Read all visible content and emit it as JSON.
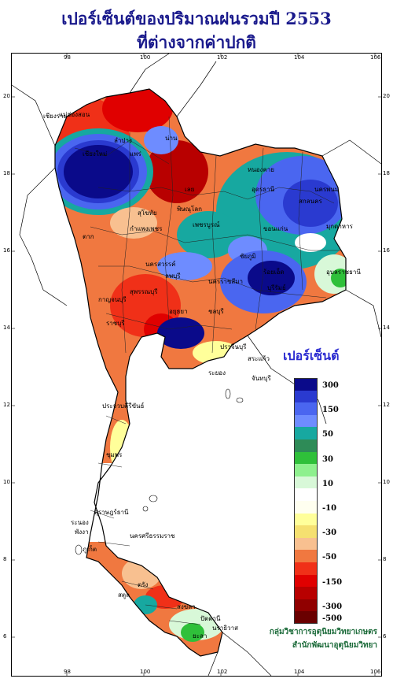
{
  "title": {
    "line1": "เปอร์เซ็นต์ของปริมาณฝนรวมปี  2553",
    "line2": "ที่ต่างจากค่าปกติ"
  },
  "axes": {
    "lon_ticks": [
      "98",
      "100",
      "102",
      "104",
      "106"
    ],
    "lat_ticks": [
      "20",
      "18",
      "16",
      "14",
      "12",
      "10",
      "8",
      "6"
    ]
  },
  "provinces": [
    "เชียงราย",
    "เชียงใหม่",
    "ลำปาง",
    "แพร่",
    "น่าน",
    "เลย",
    "หนองคาย",
    "อุดรธานี",
    "สกลนคร",
    "นครพนม",
    "มุกดาหาร",
    "ขอนแก่น",
    "เพชรบูรณ์",
    "พิษณุโลก",
    "ตาก",
    "กำแพงเพชร",
    "นครสวรรค์",
    "ลพบุรี",
    "นครราชสีมา",
    "บุรีรัมย์",
    "อุบลราชธานี",
    "กาญจนบุรี",
    "ราชบุรี",
    "ชลบุรี",
    "ระยอง",
    "จันทบุรี",
    "ประจวบคีรีขันธ์",
    "ชุมพร",
    "สุราษฎร์ธานี",
    "นครศรีธรรมราช",
    "ระนอง",
    "พังงา",
    "ภูเก็ต",
    "ตรัง",
    "สงขลา",
    "ปัตตานี",
    "นราธิวาส",
    "สตูล",
    "ยะลา",
    "สุโขทัย",
    "ชัยภูมิ",
    "ร้อยเอ็ด",
    "ปราจีนบุรี",
    "สระแก้ว",
    "สุพรรณบุรี",
    "อยุธยา",
    "แม่ฮ่องสอน"
  ],
  "legend": {
    "title": "เปอร์เซ็นต์",
    "items": [
      {
        "color": "#0a0a8a",
        "label": "300"
      },
      {
        "color": "#2a3ad0",
        "label": ""
      },
      {
        "color": "#4a66f0",
        "label": "150"
      },
      {
        "color": "#6e8cff",
        "label": ""
      },
      {
        "color": "#17a8a0",
        "label": "50"
      },
      {
        "color": "#2e8b57",
        "label": ""
      },
      {
        "color": "#2fc03a",
        "label": "30"
      },
      {
        "color": "#8ef08e",
        "label": ""
      },
      {
        "color": "#d8f8d8",
        "label": "10"
      },
      {
        "color": "#ffffff",
        "label": ""
      },
      {
        "color": "#fffff0",
        "label": "-10"
      },
      {
        "color": "#ffff9a",
        "label": ""
      },
      {
        "color": "#f5e070",
        "label": "-30"
      },
      {
        "color": "#f8c090",
        "label": ""
      },
      {
        "color": "#f07840",
        "label": "-50"
      },
      {
        "color": "#f03018",
        "label": ""
      },
      {
        "color": "#e00000",
        "label": "-150"
      },
      {
        "color": "#b80000",
        "label": ""
      },
      {
        "color": "#900000",
        "label": "-300"
      },
      {
        "color": "#6a0000",
        "label": "-500"
      }
    ]
  },
  "credits": {
    "line1": "กลุ่มวิชาการอุตุนิยมวิทยาเกษตร",
    "line2": "สำนักพัฒนาอุตุนิยมวิทยา"
  }
}
